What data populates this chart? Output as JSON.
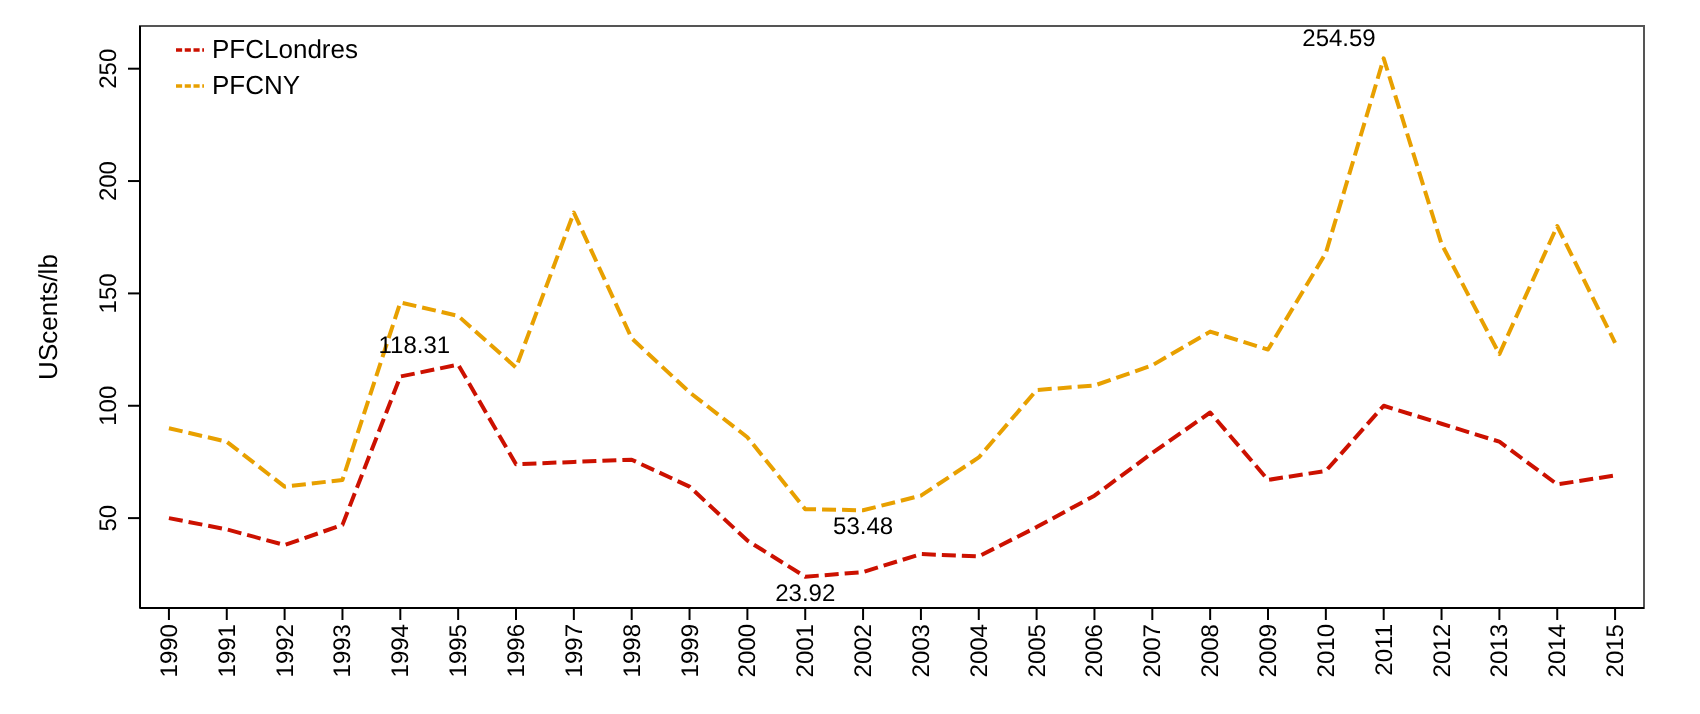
{
  "chart_data": {
    "type": "line",
    "ylabel": "UScents/lb",
    "categories": [
      "1990",
      "1991",
      "1992",
      "1993",
      "1994",
      "1995",
      "1996",
      "1997",
      "1998",
      "1999",
      "2000",
      "2001",
      "2002",
      "2003",
      "2004",
      "2005",
      "2006",
      "2007",
      "2008",
      "2009",
      "2010",
      "2011",
      "2012",
      "2013",
      "2014",
      "2015"
    ],
    "series": [
      {
        "name": "PFCLondres",
        "color": "#cc1100",
        "line_style": "dashed",
        "values": [
          50,
          45,
          38,
          47,
          113,
          118.31,
          74,
          75,
          76,
          64,
          40,
          23.92,
          26,
          34,
          33,
          46,
          60,
          79,
          97,
          67,
          71,
          100,
          92,
          84,
          65,
          69
        ],
        "value_labels": [
          null,
          null,
          null,
          null,
          null,
          "118.31",
          null,
          null,
          null,
          null,
          null,
          "23.92",
          null,
          null,
          null,
          null,
          null,
          null,
          null,
          null,
          null,
          null,
          null,
          null,
          null,
          null
        ]
      },
      {
        "name": "PFCNY",
        "color": "#e8a000",
        "line_style": "dashed",
        "values": [
          90,
          84,
          64,
          67,
          146,
          140,
          117,
          186,
          130,
          106,
          86,
          54,
          53.48,
          60,
          77,
          107,
          109,
          118,
          133,
          125,
          168,
          254.59,
          172,
          123,
          180,
          128
        ],
        "value_labels": [
          null,
          null,
          null,
          null,
          null,
          null,
          null,
          null,
          null,
          null,
          null,
          null,
          "53.48",
          null,
          null,
          null,
          null,
          null,
          null,
          null,
          null,
          "254.59",
          null,
          null,
          null,
          null
        ]
      }
    ],
    "ylim": [
      10,
      269
    ],
    "yticks": [
      50,
      100,
      150,
      200,
      250
    ],
    "grid": false,
    "legend": "top left",
    "marker": "none"
  }
}
